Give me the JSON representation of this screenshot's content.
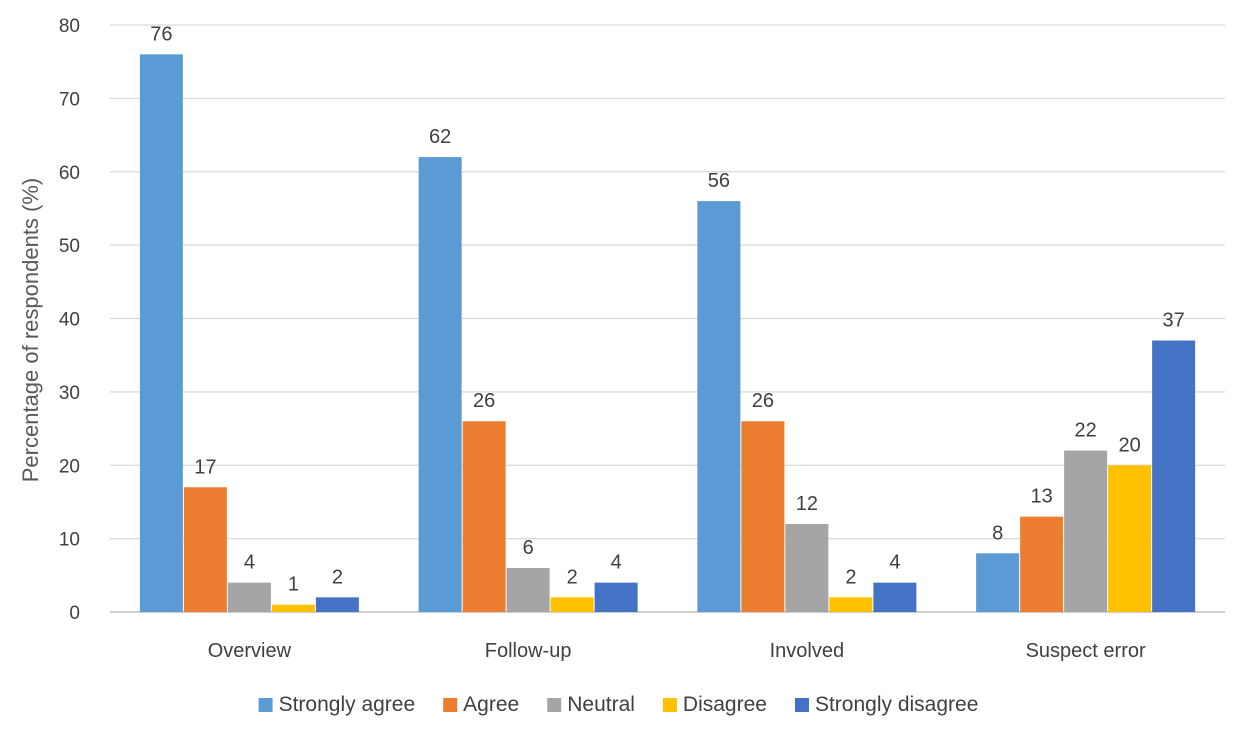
{
  "chart_data": {
    "type": "bar",
    "title": "",
    "xlabel": "",
    "ylabel": "Percentage of respondents (%)",
    "ylim": [
      0,
      80
    ],
    "yticks": [
      0,
      10,
      20,
      30,
      40,
      50,
      60,
      70,
      80
    ],
    "grid": true,
    "legend_position": "bottom",
    "categories": [
      "Overview",
      "Follow-up",
      "Involved",
      "Suspect error"
    ],
    "series": [
      {
        "name": "Strongly agree",
        "color": "#5b9bd5",
        "values": [
          76,
          62,
          56,
          8
        ]
      },
      {
        "name": "Agree",
        "color": "#ed7d31",
        "values": [
          17,
          26,
          26,
          13
        ]
      },
      {
        "name": "Neutral",
        "color": "#a5a5a5",
        "values": [
          4,
          6,
          12,
          22
        ]
      },
      {
        "name": "Disagree",
        "color": "#ffc000",
        "values": [
          1,
          2,
          2,
          20
        ]
      },
      {
        "name": "Strongly disagree",
        "color": "#4472c4",
        "values": [
          2,
          4,
          4,
          37
        ]
      }
    ],
    "data_labels": true
  }
}
